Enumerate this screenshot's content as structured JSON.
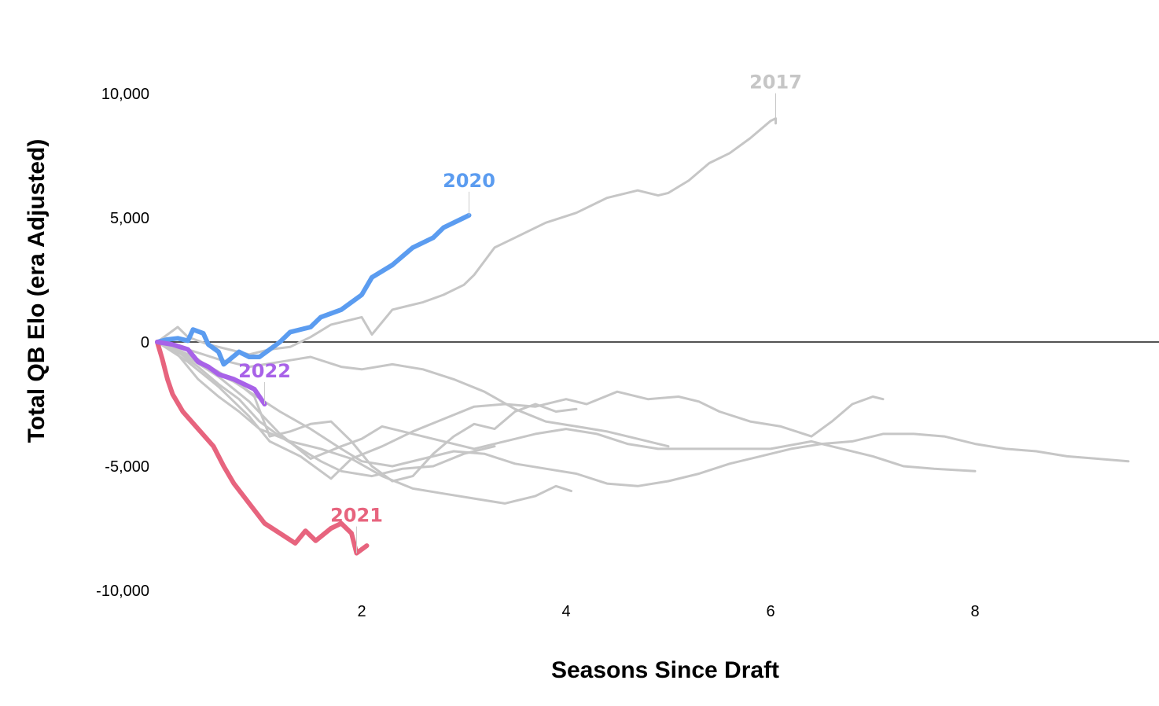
{
  "chart_data": {
    "type": "line",
    "xlabel": "Seasons Since Draft",
    "ylabel": "Total QB Elo (era Adjusted)",
    "xlim": [
      0,
      9.8
    ],
    "ylim": [
      -10000,
      10000
    ],
    "x_ticks": [
      2,
      4,
      6,
      8
    ],
    "x_tick_labels": [
      "2",
      "4",
      "6",
      "8"
    ],
    "y_ticks": [
      10000,
      5000,
      0,
      -5000,
      -10000
    ],
    "y_tick_labels": [
      "10,000",
      "5,000",
      "0",
      "-5,000",
      "-10,000"
    ],
    "zero_line": true,
    "grid": false,
    "legend": "none",
    "series": [
      {
        "name": "2017",
        "color": "#c6c6c6",
        "emphasis": false,
        "points": [
          [
            0,
            0
          ],
          [
            0.1,
            300
          ],
          [
            0.2,
            600
          ],
          [
            0.3,
            200
          ],
          [
            0.5,
            -100
          ],
          [
            0.7,
            -300
          ],
          [
            0.9,
            -500
          ],
          [
            1.1,
            -300
          ],
          [
            1.3,
            -200
          ],
          [
            1.5,
            200
          ],
          [
            1.7,
            700
          ],
          [
            2.0,
            1000
          ],
          [
            2.1,
            300
          ],
          [
            2.3,
            1300
          ],
          [
            2.6,
            1600
          ],
          [
            2.8,
            1900
          ],
          [
            3.0,
            2300
          ],
          [
            3.1,
            2700
          ],
          [
            3.3,
            3800
          ],
          [
            3.5,
            4200
          ],
          [
            3.8,
            4800
          ],
          [
            4.1,
            5200
          ],
          [
            4.4,
            5800
          ],
          [
            4.7,
            6100
          ],
          [
            4.9,
            5900
          ],
          [
            5.0,
            6000
          ],
          [
            5.2,
            6500
          ],
          [
            5.4,
            7200
          ],
          [
            5.6,
            7600
          ],
          [
            5.8,
            8200
          ],
          [
            6.0,
            8900
          ],
          [
            6.05,
            9000
          ],
          [
            6.05,
            8800
          ]
        ],
        "label": "2017"
      },
      {
        "name": "2020",
        "color": "#5b9cf0",
        "emphasis": true,
        "points": [
          [
            0,
            0
          ],
          [
            0.1,
            100
          ],
          [
            0.2,
            150
          ],
          [
            0.3,
            50
          ],
          [
            0.35,
            500
          ],
          [
            0.45,
            350
          ],
          [
            0.5,
            -100
          ],
          [
            0.6,
            -400
          ],
          [
            0.65,
            -900
          ],
          [
            0.8,
            -400
          ],
          [
            0.9,
            -600
          ],
          [
            1.0,
            -600
          ],
          [
            1.1,
            -300
          ],
          [
            1.2,
            0
          ],
          [
            1.3,
            400
          ],
          [
            1.5,
            600
          ],
          [
            1.6,
            1000
          ],
          [
            1.8,
            1300
          ],
          [
            2.0,
            1900
          ],
          [
            2.1,
            2600
          ],
          [
            2.3,
            3100
          ],
          [
            2.5,
            3800
          ],
          [
            2.7,
            4200
          ],
          [
            2.8,
            4600
          ],
          [
            3.0,
            5000
          ],
          [
            3.05,
            5100
          ]
        ],
        "label": "2020"
      },
      {
        "name": "2021",
        "color": "#e7647e",
        "emphasis": true,
        "points": [
          [
            0,
            0
          ],
          [
            0.05,
            -700
          ],
          [
            0.1,
            -1500
          ],
          [
            0.15,
            -2100
          ],
          [
            0.25,
            -2800
          ],
          [
            0.4,
            -3500
          ],
          [
            0.55,
            -4200
          ],
          [
            0.65,
            -5000
          ],
          [
            0.75,
            -5700
          ],
          [
            0.9,
            -6500
          ],
          [
            1.05,
            -7300
          ],
          [
            1.2,
            -7700
          ],
          [
            1.35,
            -8100
          ],
          [
            1.45,
            -7600
          ],
          [
            1.55,
            -8000
          ],
          [
            1.7,
            -7500
          ],
          [
            1.8,
            -7300
          ],
          [
            1.9,
            -7700
          ],
          [
            1.95,
            -8500
          ],
          [
            2.05,
            -8200
          ]
        ],
        "label": "2021"
      },
      {
        "name": "2022",
        "color": "#a862e8",
        "emphasis": true,
        "points": [
          [
            0,
            0
          ],
          [
            0.15,
            -100
          ],
          [
            0.3,
            -300
          ],
          [
            0.4,
            -800
          ],
          [
            0.5,
            -1000
          ],
          [
            0.6,
            -1300
          ],
          [
            0.75,
            -1500
          ],
          [
            0.85,
            -1700
          ],
          [
            0.95,
            -1900
          ],
          [
            1.05,
            -2500
          ]
        ],
        "label": "2022"
      },
      {
        "name": "",
        "color": "#c6c6c6",
        "emphasis": false,
        "points": [
          [
            0,
            0
          ],
          [
            0.2,
            -500
          ],
          [
            0.4,
            -1500
          ],
          [
            0.6,
            -2200
          ],
          [
            0.8,
            -2800
          ],
          [
            1.0,
            -3500
          ],
          [
            1.3,
            -4000
          ],
          [
            1.6,
            -4300
          ],
          [
            1.9,
            -4700
          ],
          [
            2.2,
            -5400
          ],
          [
            2.5,
            -5900
          ],
          [
            2.8,
            -6100
          ],
          [
            3.1,
            -6300
          ],
          [
            3.4,
            -6500
          ],
          [
            3.7,
            -6200
          ],
          [
            3.9,
            -5800
          ],
          [
            4.05,
            -6000
          ]
        ]
      },
      {
        "name": "",
        "color": "#c6c6c6",
        "emphasis": false,
        "points": [
          [
            0,
            0
          ],
          [
            0.3,
            -800
          ],
          [
            0.6,
            -1800
          ],
          [
            0.9,
            -3000
          ],
          [
            1.1,
            -4000
          ],
          [
            1.4,
            -4600
          ],
          [
            1.7,
            -5500
          ],
          [
            1.9,
            -4700
          ],
          [
            2.2,
            -4200
          ],
          [
            2.5,
            -3600
          ],
          [
            2.8,
            -3100
          ],
          [
            3.1,
            -2600
          ],
          [
            3.4,
            -2500
          ],
          [
            3.7,
            -2600
          ],
          [
            4.0,
            -2300
          ],
          [
            4.2,
            -2500
          ],
          [
            4.5,
            -2000
          ],
          [
            4.8,
            -2300
          ],
          [
            5.1,
            -2200
          ],
          [
            5.3,
            -2400
          ],
          [
            5.5,
            -2800
          ],
          [
            5.8,
            -3200
          ],
          [
            6.1,
            -3400
          ],
          [
            6.4,
            -3800
          ],
          [
            6.6,
            -3200
          ],
          [
            6.8,
            -2500
          ],
          [
            7.0,
            -2200
          ],
          [
            7.1,
            -2300
          ]
        ]
      },
      {
        "name": "",
        "color": "#c6c6c6",
        "emphasis": false,
        "points": [
          [
            0,
            0
          ],
          [
            0.3,
            -600
          ],
          [
            0.6,
            -1400
          ],
          [
            0.9,
            -2400
          ],
          [
            1.2,
            -3700
          ],
          [
            1.5,
            -4700
          ],
          [
            1.8,
            -4200
          ],
          [
            2.0,
            -3900
          ],
          [
            2.2,
            -3400
          ],
          [
            2.5,
            -3700
          ],
          [
            2.8,
            -4000
          ],
          [
            3.1,
            -4300
          ],
          [
            3.4,
            -4000
          ],
          [
            3.7,
            -3700
          ],
          [
            4.0,
            -3500
          ],
          [
            4.3,
            -3700
          ],
          [
            4.6,
            -4100
          ],
          [
            4.9,
            -4300
          ],
          [
            5.2,
            -4300
          ],
          [
            5.6,
            -4300
          ],
          [
            6.0,
            -4300
          ],
          [
            6.4,
            -4000
          ],
          [
            6.7,
            -4300
          ],
          [
            7.0,
            -4600
          ],
          [
            7.3,
            -5000
          ],
          [
            7.6,
            -5100
          ],
          [
            8.0,
            -5200
          ]
        ]
      },
      {
        "name": "",
        "color": "#c6c6c6",
        "emphasis": false,
        "points": [
          [
            0,
            0
          ],
          [
            0.3,
            -500
          ],
          [
            0.6,
            -1200
          ],
          [
            0.9,
            -2000
          ],
          [
            1.2,
            -2800
          ],
          [
            1.5,
            -3500
          ],
          [
            1.8,
            -4300
          ],
          [
            2.0,
            -4800
          ],
          [
            2.3,
            -5000
          ],
          [
            2.6,
            -4700
          ],
          [
            2.9,
            -4400
          ],
          [
            3.2,
            -4500
          ],
          [
            3.5,
            -4900
          ],
          [
            3.8,
            -5100
          ],
          [
            4.1,
            -5300
          ],
          [
            4.4,
            -5700
          ],
          [
            4.7,
            -5800
          ],
          [
            5.0,
            -5600
          ],
          [
            5.3,
            -5300
          ],
          [
            5.6,
            -4900
          ],
          [
            5.9,
            -4600
          ],
          [
            6.2,
            -4300
          ],
          [
            6.5,
            -4100
          ],
          [
            6.8,
            -4000
          ],
          [
            7.1,
            -3700
          ],
          [
            7.4,
            -3700
          ],
          [
            7.7,
            -3800
          ],
          [
            8.0,
            -4100
          ],
          [
            8.3,
            -4300
          ],
          [
            8.6,
            -4400
          ],
          [
            8.9,
            -4600
          ],
          [
            9.2,
            -4700
          ],
          [
            9.5,
            -4800
          ]
        ]
      },
      {
        "name": "",
        "color": "#c6c6c6",
        "emphasis": false,
        "points": [
          [
            0,
            0
          ],
          [
            0.3,
            -300
          ],
          [
            0.6,
            -700
          ],
          [
            0.9,
            -1000
          ],
          [
            1.2,
            -800
          ],
          [
            1.5,
            -600
          ],
          [
            1.8,
            -1000
          ],
          [
            2.0,
            -1100
          ],
          [
            2.3,
            -900
          ],
          [
            2.6,
            -1100
          ],
          [
            2.9,
            -1500
          ],
          [
            3.2,
            -2000
          ],
          [
            3.5,
            -2700
          ],
          [
            3.8,
            -3200
          ],
          [
            4.1,
            -3400
          ],
          [
            4.4,
            -3600
          ],
          [
            4.7,
            -3900
          ],
          [
            5.0,
            -4200
          ]
        ]
      },
      {
        "name": "",
        "color": "#c6c6c6",
        "emphasis": false,
        "points": [
          [
            0,
            0
          ],
          [
            0.2,
            -400
          ],
          [
            0.4,
            -1000
          ],
          [
            0.6,
            -1700
          ],
          [
            0.8,
            -2300
          ],
          [
            1.0,
            -3200
          ],
          [
            1.2,
            -3800
          ],
          [
            1.4,
            -4300
          ],
          [
            1.6,
            -4800
          ],
          [
            1.8,
            -5200
          ],
          [
            2.1,
            -5400
          ],
          [
            2.4,
            -5100
          ],
          [
            2.7,
            -5000
          ],
          [
            3.0,
            -4500
          ],
          [
            3.3,
            -4200
          ]
        ]
      },
      {
        "name": "",
        "color": "#c6c6c6",
        "emphasis": false,
        "points": [
          [
            0,
            0
          ],
          [
            0.2,
            -300
          ],
          [
            0.4,
            -700
          ],
          [
            0.6,
            -1300
          ],
          [
            0.8,
            -1700
          ],
          [
            0.95,
            -2200
          ],
          [
            1.1,
            -3800
          ],
          [
            1.3,
            -3600
          ],
          [
            1.5,
            -3300
          ],
          [
            1.7,
            -3200
          ],
          [
            1.9,
            -4000
          ],
          [
            2.1,
            -5000
          ],
          [
            2.3,
            -5600
          ],
          [
            2.5,
            -5400
          ],
          [
            2.7,
            -4500
          ],
          [
            2.9,
            -3800
          ],
          [
            3.1,
            -3300
          ],
          [
            3.3,
            -3500
          ],
          [
            3.5,
            -2800
          ],
          [
            3.7,
            -2500
          ],
          [
            3.9,
            -2800
          ],
          [
            4.1,
            -2700
          ]
        ]
      }
    ]
  }
}
